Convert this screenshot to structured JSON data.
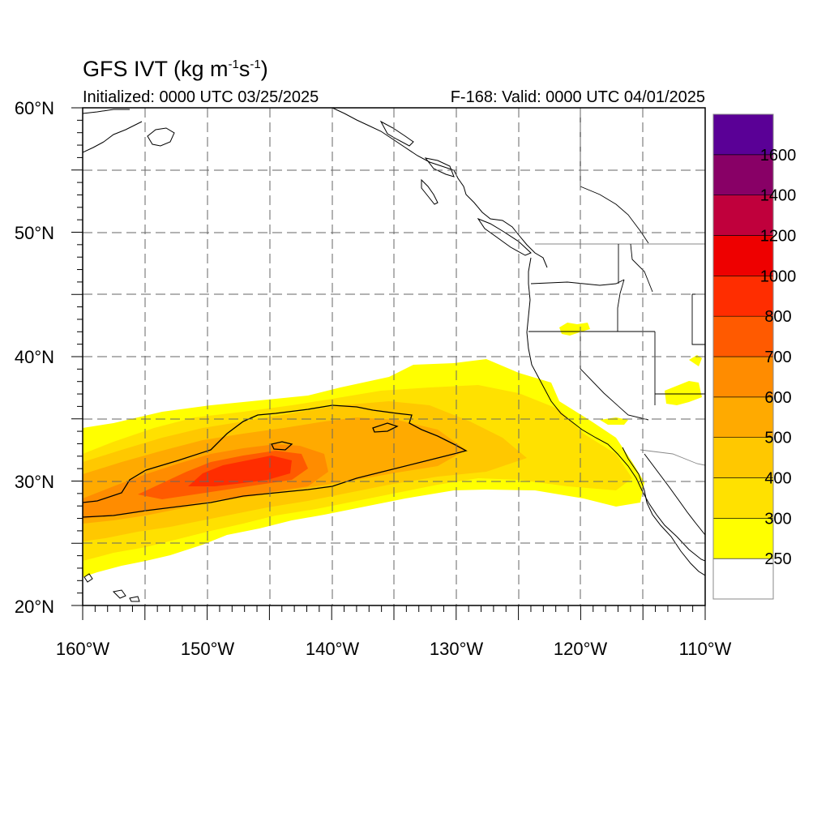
{
  "title": {
    "model": "GFS IVT",
    "units_prefix": "(kg m",
    "units_exp1": "-1",
    "units_mid": "s",
    "units_exp2": "-1",
    "units_suffix": ")"
  },
  "subtitle": {
    "initialized": "Initialized: 0000 UTC 03/25/2025",
    "valid": "F-168: Valid: 0000 UTC 04/01/2025"
  },
  "axes": {
    "lat_labels": [
      "60°N",
      "50°N",
      "40°N",
      "30°N",
      "20°N"
    ],
    "lon_labels": [
      "160°W",
      "150°W",
      "140°W",
      "130°W",
      "120°W",
      "110°W"
    ],
    "lat_range": [
      20,
      60
    ],
    "lon_range": [
      -160,
      -110
    ],
    "grid_lines": "dashed every 5 degrees"
  },
  "colorbar": {
    "levels": [
      "250",
      "300",
      "400",
      "500",
      "600",
      "700",
      "800",
      "1000",
      "1200",
      "1400",
      "1600"
    ],
    "colors": [
      "#ffffff",
      "#ffff00",
      "#ffe100",
      "#ffc800",
      "#ffaa00",
      "#ff8c00",
      "#ff5a00",
      "#ff2d00",
      "#ee0000",
      "#c0003c",
      "#880066",
      "#5a0096"
    ]
  },
  "field": {
    "description_colors": {
      "band250": "#ffff00",
      "band300": "#ffe100",
      "band400": "#ffc800",
      "band500": "#ffaa00",
      "band600": "#ff8c00",
      "band700": "#ff5a00",
      "band800": "#ff2d00"
    }
  }
}
